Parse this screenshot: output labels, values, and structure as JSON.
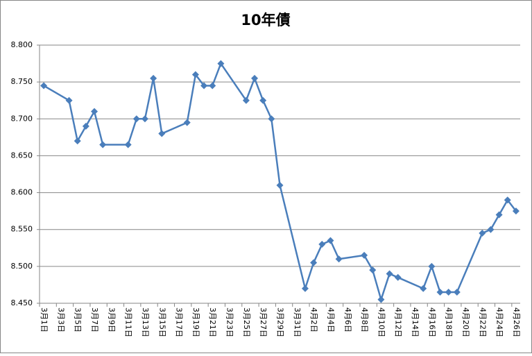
{
  "chart_data": {
    "type": "line",
    "title": "10年債",
    "categories": [
      "3月1日",
      null,
      "3月3日",
      null,
      "3月5日",
      null,
      "3月7日",
      null,
      "3月9日",
      null,
      "3月11日",
      null,
      "3月13日",
      null,
      "3月15日",
      null,
      "3月17日",
      null,
      "3月19日",
      null,
      "3月21日",
      null,
      "3月23日",
      null,
      "3月25日",
      null,
      "3月27日",
      null,
      "3月29日",
      null,
      "3月31日",
      null,
      "4月2日",
      null,
      "4月4日",
      null,
      "4月6日",
      null,
      "4月8日",
      null,
      "4月10日",
      null,
      "4月12日",
      null,
      "4月14日",
      null,
      "4月16日",
      null,
      "4月18日",
      null,
      "4月20日",
      null,
      "4月22日",
      null,
      "4月24日",
      null,
      "4月26日"
    ],
    "values": [
      8.745,
      null,
      null,
      8.725,
      8.67,
      8.69,
      8.71,
      8.665,
      null,
      null,
      8.665,
      8.7,
      8.7,
      8.755,
      8.68,
      null,
      null,
      8.695,
      8.76,
      8.745,
      8.745,
      8.775,
      null,
      null,
      8.725,
      8.755,
      8.725,
      8.7,
      8.61,
      null,
      null,
      8.47,
      8.505,
      8.53,
      8.535,
      8.51,
      null,
      null,
      8.515,
      8.495,
      8.455,
      8.49,
      8.485,
      null,
      null,
      8.47,
      8.5,
      8.465,
      8.465,
      8.465,
      null,
      null,
      8.545,
      8.55,
      8.57,
      8.59,
      8.575
    ],
    "connect_gaps": true,
    "color": "#4a7ebb",
    "ylim": [
      8.45,
      8.8
    ],
    "yticks": [
      {
        "value": 8.45,
        "label": "8.450"
      },
      {
        "value": 8.5,
        "label": "8.500"
      },
      {
        "value": 8.55,
        "label": "8.550"
      },
      {
        "value": 8.6,
        "label": "8.600"
      },
      {
        "value": 8.65,
        "label": "8.650"
      },
      {
        "value": 8.7,
        "label": "8.700"
      },
      {
        "value": 8.75,
        "label": "8.750"
      },
      {
        "value": 8.8,
        "label": "8.800"
      }
    ],
    "grid": true
  }
}
